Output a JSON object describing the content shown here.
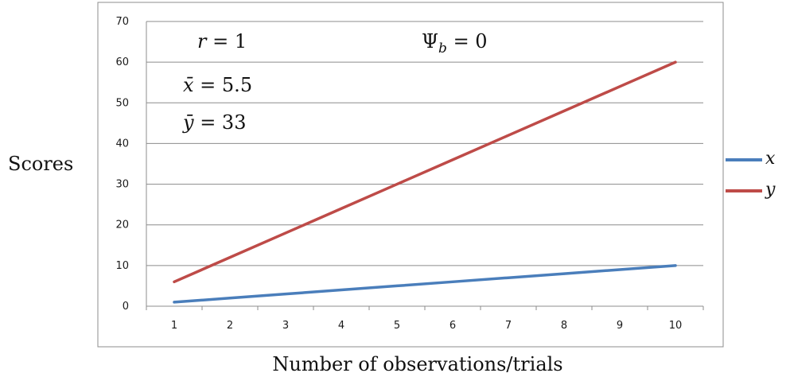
{
  "chart_data": {
    "type": "line",
    "x": [
      1,
      2,
      3,
      4,
      5,
      6,
      7,
      8,
      9,
      10
    ],
    "series": [
      {
        "name": "x",
        "values": [
          1,
          2,
          3,
          4,
          5,
          6,
          7,
          8,
          9,
          10
        ],
        "color": "#4A7EBB"
      },
      {
        "name": "y",
        "values": [
          6,
          12,
          18,
          24,
          30,
          36,
          42,
          48,
          54,
          60
        ],
        "color": "#BE4B48"
      }
    ],
    "xlabel": "Number of observations/trials",
    "ylabel": "Scores",
    "ylim": [
      0,
      70
    ],
    "ytick_step": 10,
    "yticks": [
      "0",
      "10",
      "20",
      "30",
      "40",
      "50",
      "60",
      "70"
    ],
    "xticks": [
      "1",
      "2",
      "3",
      "4",
      "5",
      "6",
      "7",
      "8",
      "9",
      "10"
    ],
    "grid": true,
    "legend": "right",
    "annotations": {
      "r": {
        "var": "r",
        "rest": " = 1"
      },
      "psi": {
        "var": "Ψ",
        "sub": "b",
        "rest": " = 0"
      },
      "xbar": {
        "var": "x̄",
        "rest": " = 5.5"
      },
      "ybar": {
        "var": "ȳ",
        "rest": " = 33"
      }
    }
  }
}
